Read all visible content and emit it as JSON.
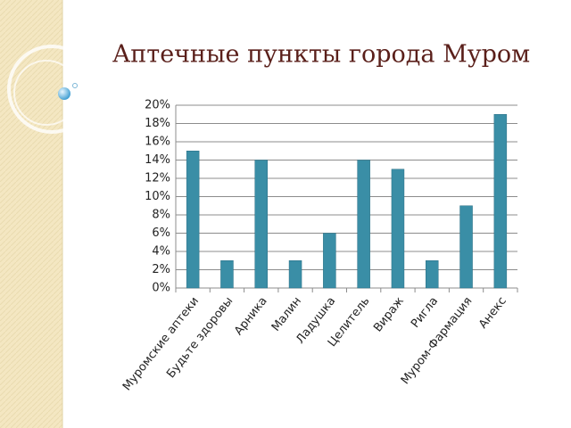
{
  "chart_data": {
    "type": "bar",
    "title": "Аптечные пункты города Муром",
    "categories": [
      "Муромские аптеки",
      "Будьте здоровы",
      "Арника",
      "Малин",
      "Ладушка",
      "Целитель",
      "Вираж",
      "Ригла",
      "Муром-Фармация",
      "Анекс"
    ],
    "values": [
      15,
      3,
      14,
      3,
      6,
      14,
      13,
      3,
      9,
      19
    ],
    "color": "#3a8ea6",
    "ylim": [
      0,
      20
    ],
    "yticks": [
      {
        "value": 0,
        "label": "0%"
      },
      {
        "value": 2,
        "label": "2%"
      },
      {
        "value": 4,
        "label": "4%"
      },
      {
        "value": 6,
        "label": "6%"
      },
      {
        "value": 8,
        "label": "8%"
      },
      {
        "value": 10,
        "label": "10%"
      },
      {
        "value": 12,
        "label": "12%"
      },
      {
        "value": 14,
        "label": "14%"
      },
      {
        "value": 16,
        "label": "16%"
      },
      {
        "value": 18,
        "label": "18%"
      },
      {
        "value": 20,
        "label": "20%"
      }
    ],
    "grid": true
  }
}
